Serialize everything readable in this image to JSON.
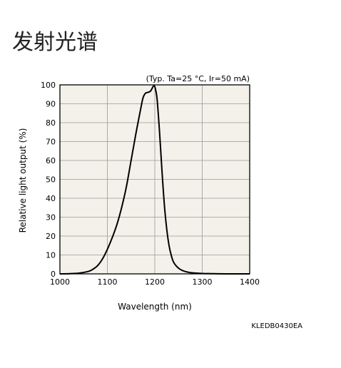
{
  "page": {
    "title": "发射光谱"
  },
  "chart_data": {
    "type": "line",
    "title": "",
    "xlabel": "Wavelength (nm)",
    "ylabel": "Relative light output (%)",
    "xlim": [
      1000,
      1400
    ],
    "ylim": [
      0,
      100
    ],
    "xticks": [
      1000,
      1100,
      1200,
      1300,
      1400
    ],
    "yticks": [
      0,
      10,
      20,
      30,
      40,
      50,
      60,
      70,
      80,
      90,
      100
    ],
    "grid": true,
    "conditions": {
      "prefix": "(Typ. Ta=25 °C, I",
      "subscript": "F",
      "suffix": "=50 mA)"
    },
    "code": "KLEDB0430EA",
    "colors": {
      "plot_background": "#f3f1e9",
      "line": "#000000",
      "grid": "#999999"
    },
    "series": [
      {
        "x": [
          1000,
          1020,
          1040,
          1060,
          1070,
          1080,
          1090,
          1100,
          1110,
          1120,
          1130,
          1140,
          1150,
          1160,
          1170,
          1175,
          1180,
          1185,
          1190,
          1193,
          1196,
          1198,
          1200,
          1202,
          1205,
          1210,
          1215,
          1220,
          1225,
          1230,
          1235,
          1240,
          1250,
          1260,
          1270,
          1280,
          1300,
          1320,
          1350,
          1400
        ],
        "y": [
          0,
          0.1,
          0.4,
          1.3,
          2.5,
          4.5,
          8,
          13,
          19,
          26,
          35,
          46,
          60,
          74,
          87,
          93,
          95.5,
          96,
          96.5,
          97.5,
          99,
          99.5,
          99,
          97,
          92,
          75,
          55,
          37,
          24,
          15,
          9.5,
          6,
          3,
          1.6,
          0.9,
          0.5,
          0.2,
          0.1,
          0,
          0
        ]
      }
    ]
  }
}
